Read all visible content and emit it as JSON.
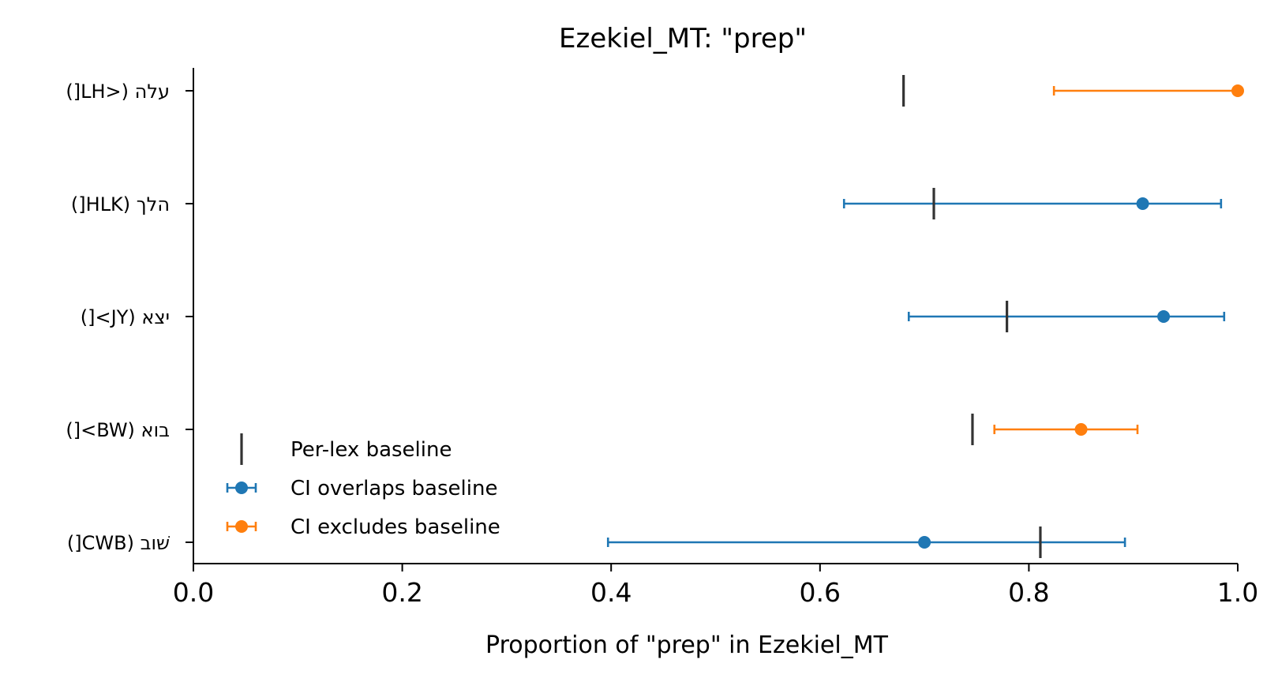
{
  "chart_data": {
    "type": "scatter",
    "title": "Ezekiel_MT: \"prep\"",
    "xlabel": "Proportion of \"prep\" in Ezekiel_MT",
    "ylabel": "",
    "xlim": [
      0.0,
      1.0
    ],
    "xticks": [
      "0.0",
      "0.2",
      "0.4",
      "0.6",
      "0.8",
      "1.0"
    ],
    "grid": false,
    "legend_position": "lower-left",
    "colors": {
      "baseline": "#333333",
      "overlaps": "#1f77b4",
      "excludes": "#ff7f0e"
    },
    "legend": [
      {
        "label": "Per-lex baseline",
        "kind": "baseline"
      },
      {
        "label": "CI overlaps baseline",
        "kind": "overlaps"
      },
      {
        "label": "CI excludes baseline",
        "kind": "excludes"
      }
    ],
    "categories": [
      "עלה (<LH[)",
      "הלך (HLK[)",
      "יצא (JY>[)",
      "בוא (BW>[)",
      "שׁוב (CWB[)"
    ],
    "rows": [
      {
        "label": "עלה (<LH[)",
        "value": 1.0,
        "ci_low": 0.824,
        "ci_high": 1.0,
        "baseline": 0.68,
        "status": "excludes"
      },
      {
        "label": "הלך (HLK[)",
        "value": 0.909,
        "ci_low": 0.623,
        "ci_high": 0.984,
        "baseline": 0.709,
        "status": "overlaps"
      },
      {
        "label": "יצא (JY>[)",
        "value": 0.929,
        "ci_low": 0.685,
        "ci_high": 0.987,
        "baseline": 0.779,
        "status": "overlaps"
      },
      {
        "label": "בוא (BW>[)",
        "value": 0.85,
        "ci_low": 0.767,
        "ci_high": 0.904,
        "baseline": 0.746,
        "status": "excludes"
      },
      {
        "label": "שׁוב (CWB[)",
        "value": 0.7,
        "ci_low": 0.397,
        "ci_high": 0.892,
        "baseline": 0.811,
        "status": "overlaps"
      }
    ]
  }
}
